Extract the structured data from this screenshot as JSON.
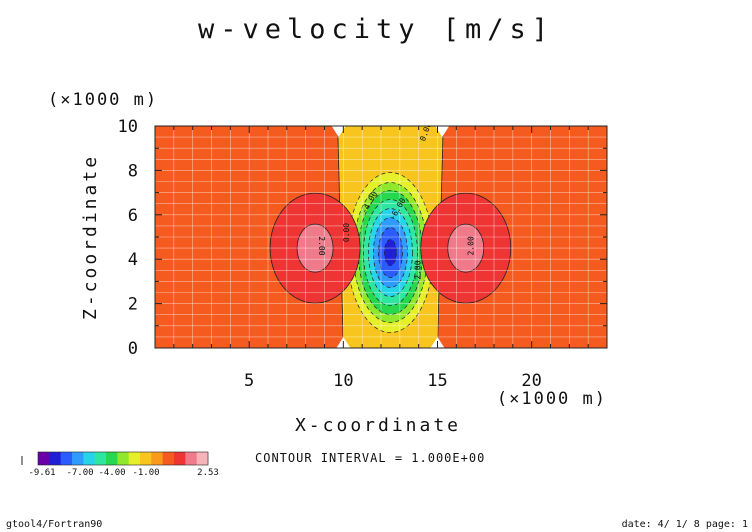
{
  "chart_data": {
    "type": "heatmap",
    "title": "w-velocity [m/s]",
    "xlabel": "X-coordinate",
    "ylabel": "Z-coordinate",
    "x_unit": "(×1000 m)",
    "y_unit": "(×1000 m)",
    "xlim": [
      0,
      24
    ],
    "ylim": [
      0,
      10
    ],
    "x_ticks": [
      "5",
      "10",
      "15",
      "20"
    ],
    "y_ticks": [
      "0",
      "2",
      "4",
      "6",
      "8",
      "10"
    ],
    "grid": true,
    "description_of_field": "updraft/downdraft cell pattern",
    "features": [
      {
        "label": "downdraft core",
        "x": 12.5,
        "z": 4.3,
        "value": -9.6
      },
      {
        "label": "left updraft core",
        "x": 8.5,
        "z": 4.5,
        "value": 2.53
      },
      {
        "label": "right updraft core",
        "x": 16.5,
        "z": 4.5,
        "value": 2.53
      }
    ],
    "contour_labels": [
      "0.00",
      "0.00",
      "2.00",
      "2.00",
      "-2.00",
      "-4.00",
      "-6.00"
    ],
    "colorbar": {
      "labels": [
        "-9.61",
        "-7.00",
        "-4.00",
        "-1.00",
        "2.53"
      ],
      "colors": [
        "#6a00a8",
        "#1f1fd6",
        "#2a5cff",
        "#2f9bff",
        "#26d3e8",
        "#2ee6a0",
        "#27d84f",
        "#8fe82c",
        "#e6f02a",
        "#f7c51e",
        "#f99a1c",
        "#f55a1e",
        "#ef3434",
        "#f07a8a",
        "#f7b3b8"
      ]
    },
    "contour_interval": "CONTOUR INTERVAL = 1.000E+00"
  },
  "footer": {
    "left": "gtool4/Fortran90",
    "right": "date: 4/ 1/ 8 page: 1"
  }
}
